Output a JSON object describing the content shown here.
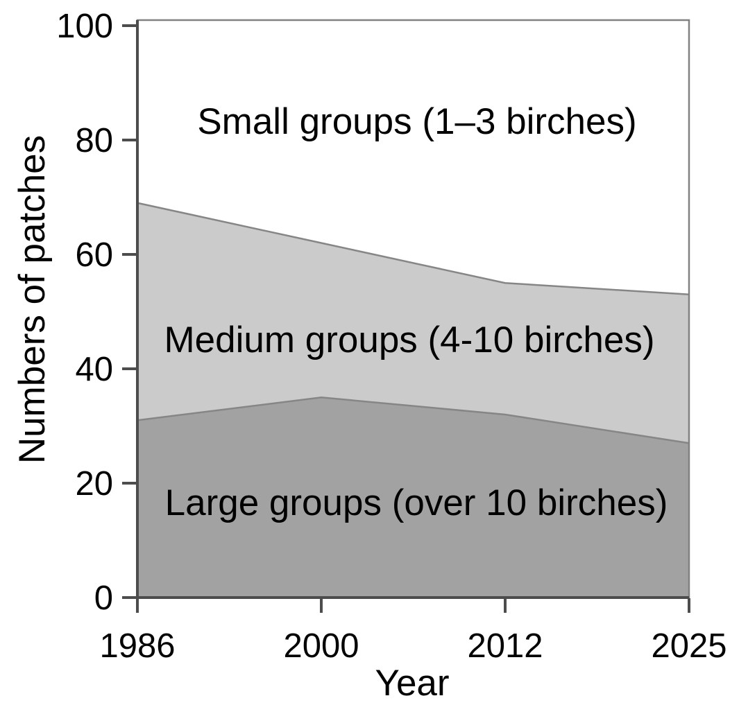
{
  "chart_data": {
    "type": "area",
    "stacked": true,
    "xlabel": "Year",
    "ylabel": "Numbers of patches",
    "x": [
      1986,
      2000,
      2012,
      2025
    ],
    "xtick_labels": [
      "1986",
      "2000",
      "2012",
      "2025"
    ],
    "ytick_labels": [
      "100",
      "80",
      "60",
      "40",
      "20",
      "0"
    ],
    "ylim": [
      0,
      100
    ],
    "grid": false,
    "legend_position": "labels-inside-areas",
    "series": [
      {
        "name": "Large groups (over 10 birches)",
        "values": [
          31,
          35,
          32,
          27
        ],
        "cumulative_top": [
          31,
          35,
          32,
          27
        ],
        "fill": "#a2a2a2",
        "edge": true
      },
      {
        "name": "Medium groups (4-10 birches)",
        "values": [
          38,
          27,
          23,
          26
        ],
        "cumulative_top": [
          69,
          62,
          55,
          53
        ],
        "fill": "#cbcbcb",
        "edge": true
      },
      {
        "name": "Small groups (1–3 birches)",
        "values": [
          31,
          38,
          45,
          47
        ],
        "cumulative_top": [
          100,
          100,
          100,
          100
        ],
        "fill": "#ffffff",
        "edge": false
      }
    ],
    "colors": {
      "edge_line": "#868686",
      "axis": "#4d4d4d",
      "box": "#818181",
      "text": "#000000",
      "large_fill": "#a2a2a2",
      "medium_fill": "#cbcbcb",
      "small_fill": "#ffffff"
    }
  }
}
